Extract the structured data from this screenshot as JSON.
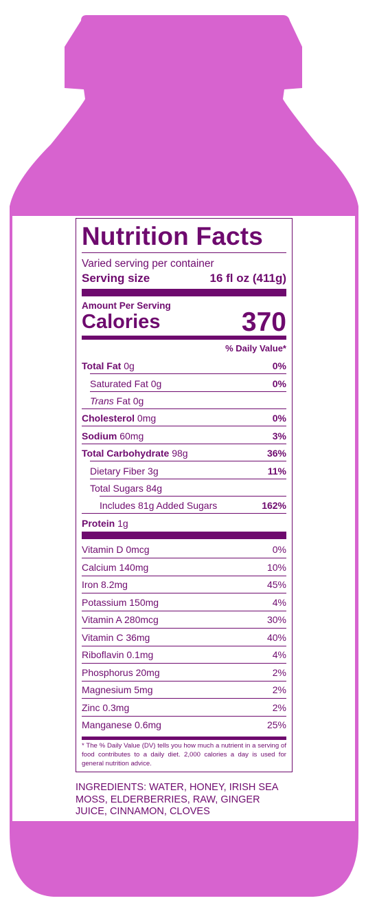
{
  "colors": {
    "bottle": "#d763cf",
    "ink": "#6e0a6e",
    "label": "#ffffff"
  },
  "panel": {
    "title": "Nutrition Facts",
    "servings_per_container": "Varied serving per container",
    "serving_size_label": "Serving size",
    "serving_size_value": "16 fl oz (411g)",
    "amount_per_serving": "Amount Per Serving",
    "calories_label": "Calories",
    "calories_value": "370",
    "daily_value_header": "% Daily Value*",
    "nutrients": [
      {
        "name": "Total Fat",
        "amount": "0g",
        "dv": "0%"
      },
      {
        "name": "Saturated Fat",
        "amount": "0g",
        "dv": "0%"
      },
      {
        "name": "Trans",
        "name_suffix": "Fat",
        "amount": "0g",
        "dv": ""
      },
      {
        "name": "Cholesterol",
        "amount": "0mg",
        "dv": "0%"
      },
      {
        "name": "Sodium",
        "amount": "60mg",
        "dv": "3%"
      },
      {
        "name": "Total Carbohydrate",
        "amount": "98g",
        "dv": "36%"
      },
      {
        "name": "Dietary Fiber",
        "amount": "3g",
        "dv": "11%"
      },
      {
        "name": "Total Sugars",
        "amount": "84g",
        "dv": ""
      },
      {
        "name": "Includes 81g Added Sugars",
        "amount": "",
        "dv": "162%"
      },
      {
        "name": "Protein",
        "amount": "1g",
        "dv": ""
      }
    ],
    "vitamins": [
      {
        "name": "Vitamin D 0mcg",
        "dv": "0%"
      },
      {
        "name": "Calcium 140mg",
        "dv": "10%"
      },
      {
        "name": "Iron 8.2mg",
        "dv": "45%"
      },
      {
        "name": "Potassium 150mg",
        "dv": "4%"
      },
      {
        "name": "Vitamin A 280mcg",
        "dv": "30%"
      },
      {
        "name": "Vitamin C 36mg",
        "dv": "40%"
      },
      {
        "name": "Riboflavin 0.1mg",
        "dv": "4%"
      },
      {
        "name": "Phosphorus 20mg",
        "dv": "2%"
      },
      {
        "name": "Magnesium 5mg",
        "dv": "2%"
      },
      {
        "name": "Zinc 0.3mg",
        "dv": "2%"
      },
      {
        "name": "Manganese 0.6mg",
        "dv": "25%"
      }
    ],
    "footnote": "* The % Daily Value (DV) tells you how much a nutrient in a serving of food contributes to a daily diet. 2,000 calories a day is used for general nutrition advice."
  },
  "ingredients": "INGREDIENTS: WATER, HONEY, IRISH SEA MOSS, ELDERBERRIES, RAW, GINGER JUICE, CINNAMON, CLOVES"
}
